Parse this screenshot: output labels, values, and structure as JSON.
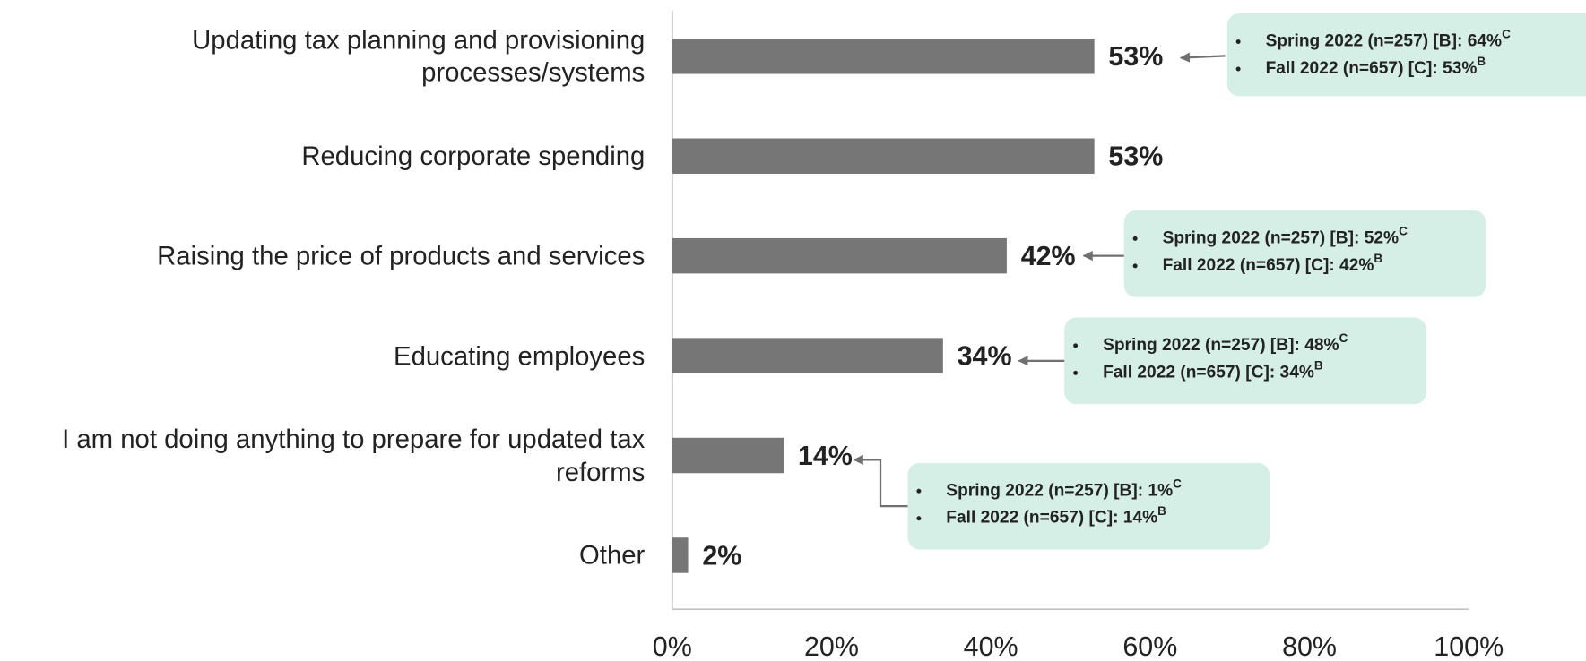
{
  "chart_data": {
    "type": "hbar",
    "categories": [
      "Updating tax planning and provisioning processes/systems",
      "Reducing corporate spending",
      "Raising the price of products and services",
      "Educating employees",
      "I am not doing anything to prepare for updated tax reforms",
      "Other"
    ],
    "values": [
      53,
      53,
      42,
      34,
      14,
      2
    ],
    "value_labels": [
      "53%",
      "53%",
      "42%",
      "34%",
      "14%",
      "2%"
    ],
    "color": "#767676",
    "xlim": [
      0,
      100
    ],
    "xticks": [
      {
        "value": 0,
        "label": "0%"
      },
      {
        "value": 20,
        "label": "20%"
      },
      {
        "value": 40,
        "label": "40%"
      },
      {
        "value": 60,
        "label": "60%"
      },
      {
        "value": 80,
        "label": "80%"
      },
      {
        "value": 100,
        "label": "100%"
      }
    ],
    "grid": false,
    "annotations": [
      {
        "lines": [
          {
            "text": "Spring 2022 (n=257) [B]: 64%",
            "sup": "C"
          },
          {
            "text": "Fall 2022 (n=657) [C]: 53%",
            "sup": "B"
          }
        ]
      },
      {
        "lines": [
          {
            "text": "Spring 2022 (n=257) [B]: 52%",
            "sup": "C"
          },
          {
            "text": "Fall 2022 (n=657) [C]: 42%",
            "sup": "B"
          }
        ]
      },
      {
        "lines": [
          {
            "text": "Spring 2022 (n=257) [B]: 48%",
            "sup": "C"
          },
          {
            "text": "Fall 2022 (n=657) [C]: 34%",
            "sup": "B"
          }
        ]
      },
      {
        "lines": [
          {
            "text": "Spring 2022 (n=257) [B]: 1%",
            "sup": "C"
          },
          {
            "text": "Fall 2022 (n=657) [C]: 14%",
            "sup": "B"
          }
        ]
      }
    ]
  }
}
